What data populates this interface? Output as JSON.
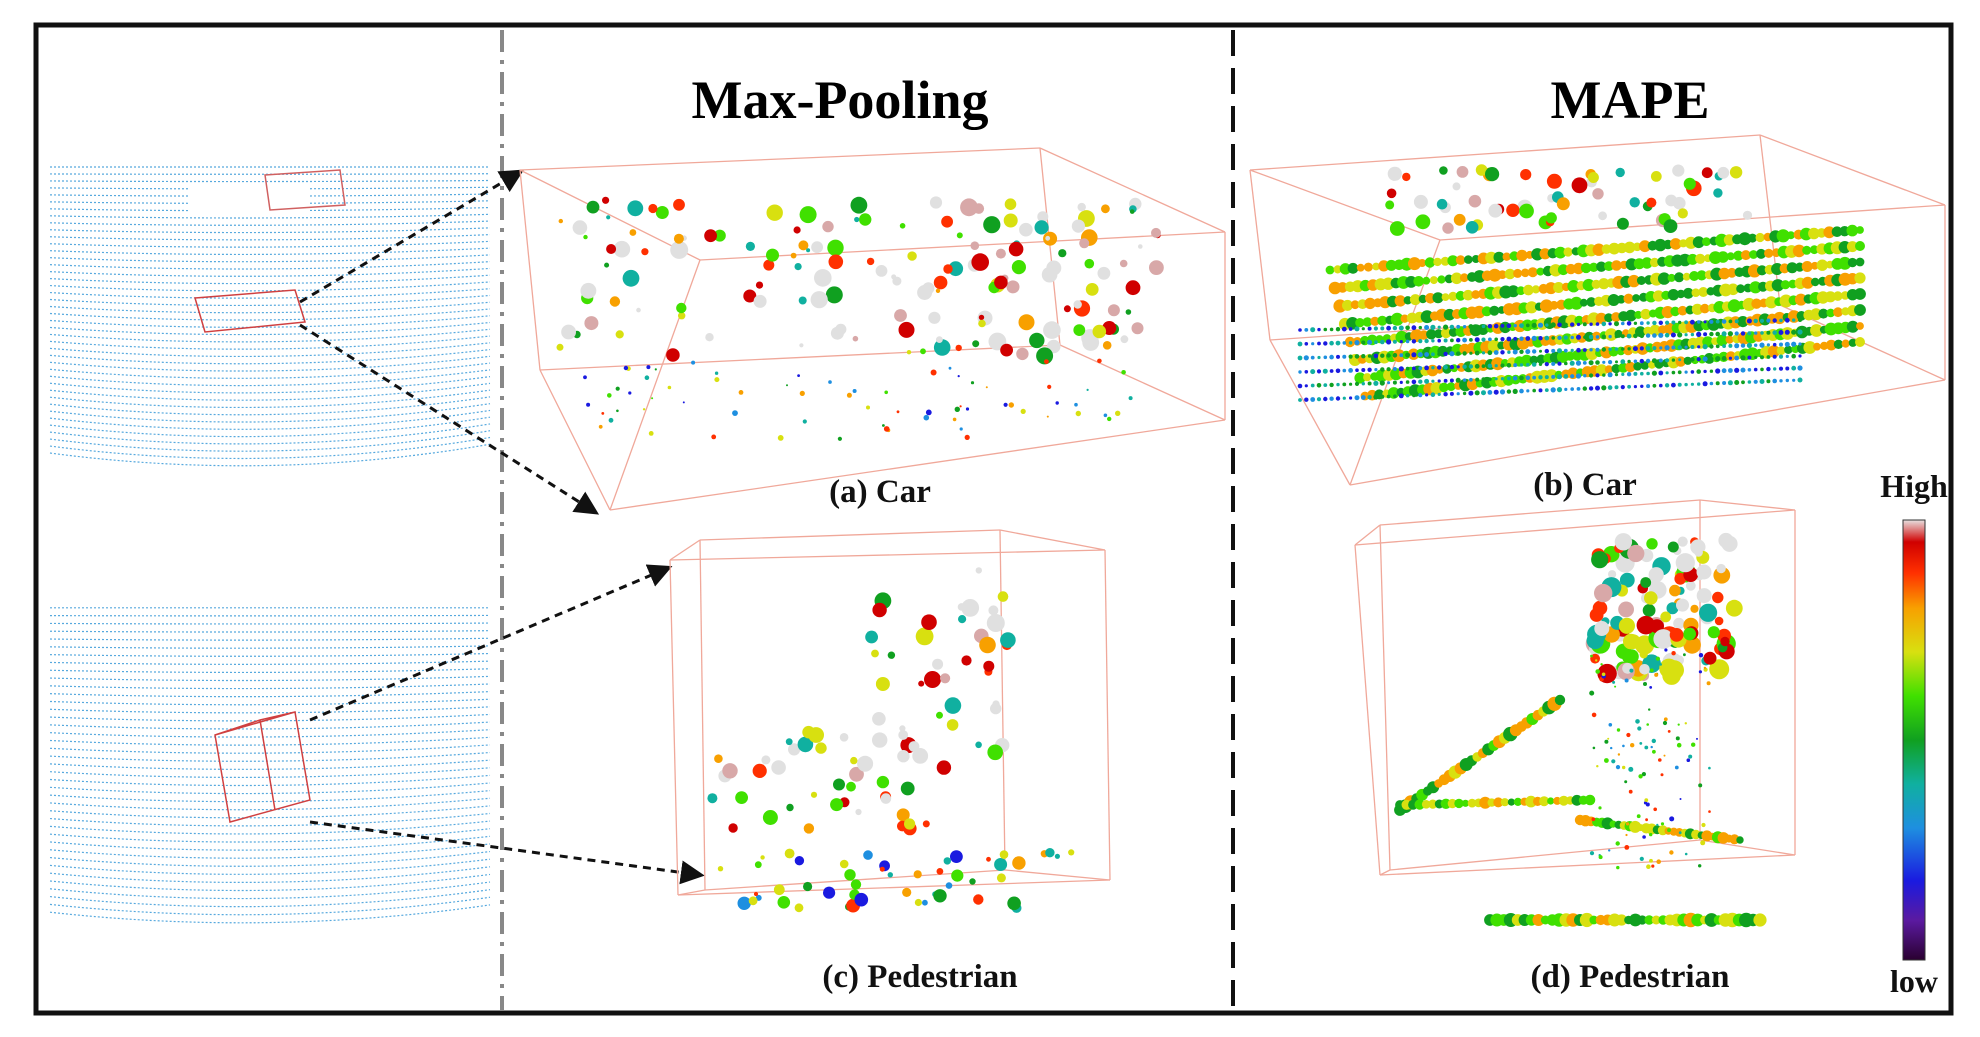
{
  "headings": {
    "max_pooling": "Max-Pooling",
    "mape": "MAPE"
  },
  "captions": {
    "a": "(a) Car",
    "b": "(b) Car",
    "c": "(c) Pedestrian",
    "d": "(d) Pedestrian"
  },
  "colorbar": {
    "high_label": "High",
    "low_label": "low",
    "stops": [
      "#2a0030",
      "#5b1aa0",
      "#1a1ae0",
      "#1e8fe0",
      "#10b0a0",
      "#10a020",
      "#40e000",
      "#d8e010",
      "#f8a000",
      "#ff3000",
      "#d00000",
      "#e0e0e0"
    ]
  },
  "colors": {
    "frame": "#111111",
    "box_edge": "#f0a89a",
    "lidar_scan": "#3a9ad8",
    "divider_dashdot": "#888888",
    "divider_dashed": "#111111"
  }
}
